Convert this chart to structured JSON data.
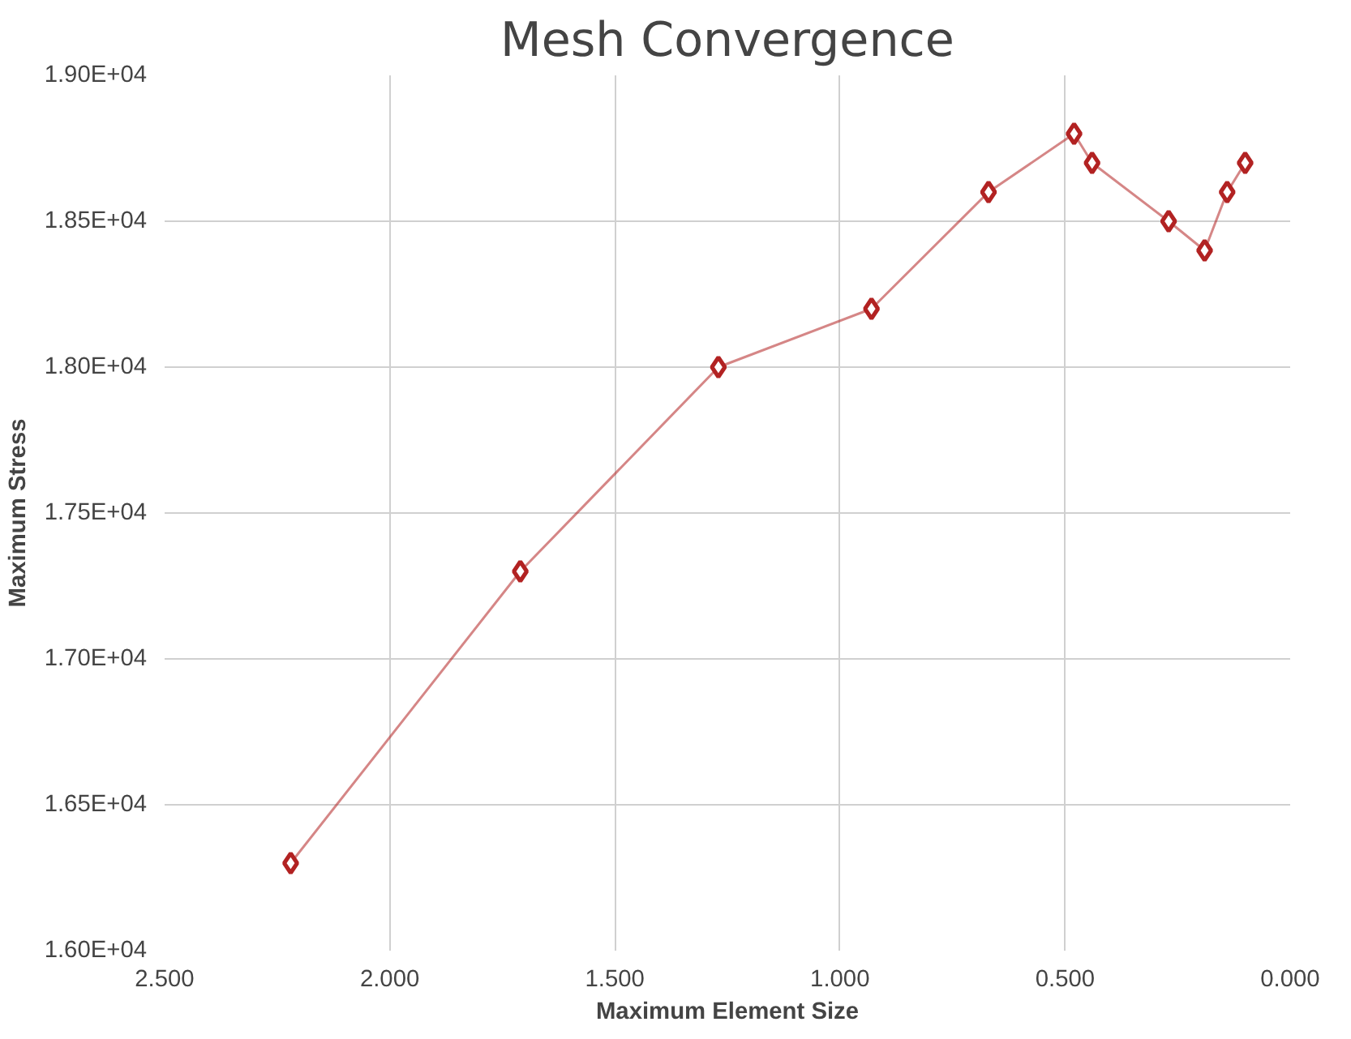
{
  "chart_data": {
    "type": "line",
    "title": "Mesh Convergence",
    "xlabel": "Maximum Element Size",
    "ylabel": "Maximum Stress",
    "series": [
      {
        "color": "#b22222",
        "x": [
          2.22,
          1.71,
          1.27,
          0.93,
          0.67,
          0.48,
          0.44,
          0.27,
          0.19,
          0.14,
          0.1
        ],
        "values": [
          16300,
          17300,
          18000,
          18200,
          18600,
          18800,
          18700,
          18500,
          18400,
          18600,
          18700
        ]
      }
    ],
    "xlim": [
      2.5,
      0
    ],
    "ylim": [
      16000,
      19000
    ],
    "xticks": [
      {
        "value": 2.5,
        "label": "2.500"
      },
      {
        "value": 2.0,
        "label": "2.000"
      },
      {
        "value": 1.5,
        "label": "1.500"
      },
      {
        "value": 1.0,
        "label": "1.000"
      },
      {
        "value": 0.5,
        "label": "0.500"
      },
      {
        "value": 0,
        "label": "0.000"
      }
    ],
    "yticks": [
      {
        "value": 16000,
        "label": "1.60E+04"
      },
      {
        "value": 16500,
        "label": "1.65E+04"
      },
      {
        "value": 17000,
        "label": "1.70E+04"
      },
      {
        "value": 17500,
        "label": "1.75E+04"
      },
      {
        "value": 18000,
        "label": "1.80E+04"
      },
      {
        "value": 18500,
        "label": "1.85E+04"
      },
      {
        "value": 19000,
        "label": "1.90E+04"
      }
    ],
    "grid": true,
    "marker": "diamond",
    "line_style": "solid"
  }
}
